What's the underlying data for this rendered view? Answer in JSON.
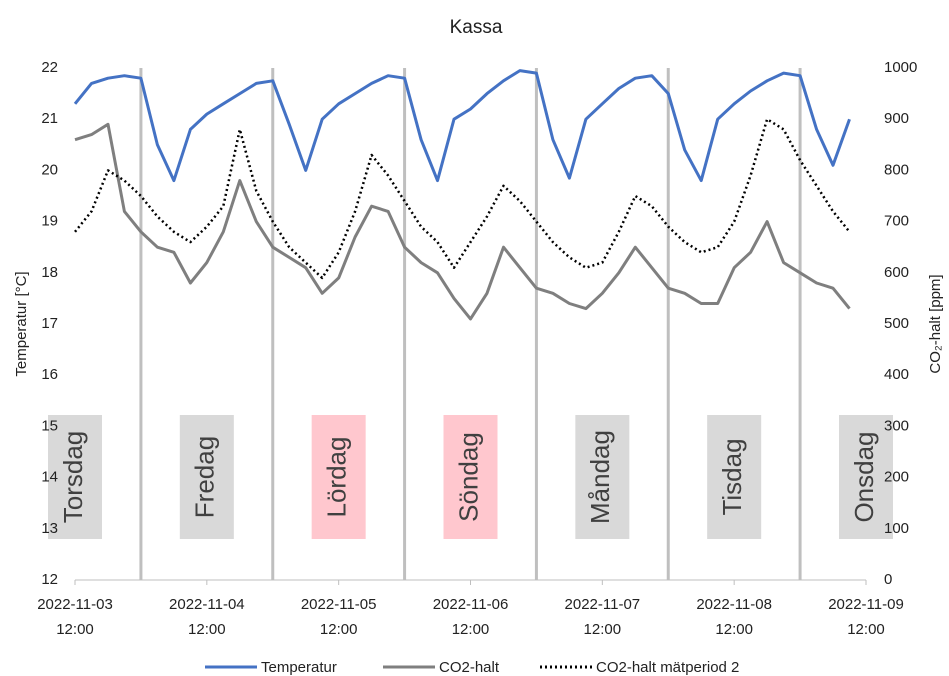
{
  "chart_data": {
    "type": "line",
    "title": "Kassa",
    "y_label": "Temperatur  [°C]",
    "y2_label": "CO₂-halt [ppm]",
    "x": [
      "2022-11-03 12:00",
      "2022-11-03 15:00",
      "2022-11-03 18:00",
      "2022-11-03 21:00",
      "2022-11-04 00:00",
      "2022-11-04 03:00",
      "2022-11-04 06:00",
      "2022-11-04 09:00",
      "2022-11-04 12:00",
      "2022-11-04 15:00",
      "2022-11-04 18:00",
      "2022-11-04 21:00",
      "2022-11-05 00:00",
      "2022-11-05 03:00",
      "2022-11-05 06:00",
      "2022-11-05 09:00",
      "2022-11-05 12:00",
      "2022-11-05 15:00",
      "2022-11-05 18:00",
      "2022-11-05 21:00",
      "2022-11-06 00:00",
      "2022-11-06 03:00",
      "2022-11-06 06:00",
      "2022-11-06 09:00",
      "2022-11-06 12:00",
      "2022-11-06 15:00",
      "2022-11-06 18:00",
      "2022-11-06 21:00",
      "2022-11-07 00:00",
      "2022-11-07 03:00",
      "2022-11-07 06:00",
      "2022-11-07 09:00",
      "2022-11-07 12:00",
      "2022-11-07 15:00",
      "2022-11-07 18:00",
      "2022-11-07 21:00",
      "2022-11-08 00:00",
      "2022-11-08 03:00",
      "2022-11-08 06:00",
      "2022-11-08 09:00",
      "2022-11-08 12:00",
      "2022-11-08 15:00",
      "2022-11-08 18:00",
      "2022-11-08 21:00",
      "2022-11-09 00:00",
      "2022-11-09 03:00",
      "2022-11-09 06:00",
      "2022-11-09 09:00"
    ],
    "series": [
      {
        "name": "Temperatur",
        "color": "#4472c4",
        "dash": "solid",
        "axis": "y",
        "values": [
          21.3,
          21.7,
          21.8,
          21.85,
          21.8,
          20.5,
          19.8,
          20.8,
          21.1,
          21.3,
          21.5,
          21.7,
          21.75,
          20.9,
          20.0,
          21.0,
          21.3,
          21.5,
          21.7,
          21.85,
          21.8,
          20.6,
          19.8,
          21.0,
          21.2,
          21.5,
          21.75,
          21.95,
          21.9,
          20.6,
          19.85,
          21.0,
          21.3,
          21.6,
          21.8,
          21.85,
          21.5,
          20.4,
          19.8,
          21.0,
          21.3,
          21.55,
          21.75,
          21.9,
          21.85,
          20.8,
          20.1,
          21.0
        ]
      },
      {
        "name": "CO2-halt",
        "color": "#7f7f7f",
        "dash": "solid",
        "axis": "y2",
        "values": [
          860,
          870,
          890,
          720,
          680,
          650,
          640,
          580,
          620,
          680,
          780,
          700,
          650,
          630,
          610,
          560,
          590,
          670,
          730,
          720,
          650,
          620,
          600,
          550,
          510,
          560,
          650,
          610,
          570,
          560,
          540,
          530,
          560,
          600,
          650,
          610,
          570,
          560,
          540,
          540,
          610,
          640,
          700,
          620,
          600,
          580,
          570,
          530
        ]
      },
      {
        "name": "CO2-halt mätperiod 2",
        "color": "#000000",
        "dash": "dotted",
        "axis": "y2",
        "values": [
          680,
          720,
          800,
          780,
          750,
          710,
          680,
          660,
          690,
          730,
          880,
          760,
          700,
          650,
          620,
          590,
          640,
          720,
          830,
          790,
          740,
          690,
          660,
          610,
          660,
          710,
          770,
          740,
          700,
          660,
          630,
          610,
          620,
          680,
          750,
          730,
          690,
          660,
          640,
          650,
          700,
          790,
          900,
          880,
          820,
          770,
          720,
          680
        ]
      }
    ],
    "xlim": [
      "2022-11-03 12:00",
      "2022-11-09 12:00"
    ],
    "xticks": [
      "2022-11-03 12:00",
      "2022-11-04 12:00",
      "2022-11-05 12:00",
      "2022-11-06 12:00",
      "2022-11-07 12:00",
      "2022-11-08 12:00",
      "2022-11-09 12:00"
    ],
    "ylim": [
      12,
      22
    ],
    "yticks": [
      12,
      13,
      14,
      15,
      16,
      17,
      18,
      19,
      20,
      21,
      22
    ],
    "y2lim": [
      0,
      1000
    ],
    "y2ticks": [
      0,
      100,
      200,
      300,
      400,
      500,
      600,
      700,
      800,
      900,
      1000
    ],
    "day_lines": [
      "2022-11-04 00:00",
      "2022-11-05 00:00",
      "2022-11-06 00:00",
      "2022-11-07 00:00",
      "2022-11-08 00:00",
      "2022-11-09 00:00"
    ],
    "day_line_color": "#bfbfbf",
    "annotations": [
      {
        "text": "Torsdag",
        "x": "2022-11-03 12:00",
        "color": "#d9d9d9"
      },
      {
        "text": "Fredag",
        "x": "2022-11-04 12:00",
        "color": "#d9d9d9"
      },
      {
        "text": "Lördag",
        "x": "2022-11-05 12:00",
        "color": "#ffc7ce"
      },
      {
        "text": "Söndag",
        "x": "2022-11-06 12:00",
        "color": "#ffc7ce"
      },
      {
        "text": "Måndag",
        "x": "2022-11-07 12:00",
        "color": "#d9d9d9"
      },
      {
        "text": "Tisdag",
        "x": "2022-11-08 12:00",
        "color": "#d9d9d9"
      },
      {
        "text": "Onsdag",
        "x": "2022-11-09 12:00",
        "color": "#d9d9d9"
      }
    ],
    "legend": "bottom",
    "grid": false
  }
}
